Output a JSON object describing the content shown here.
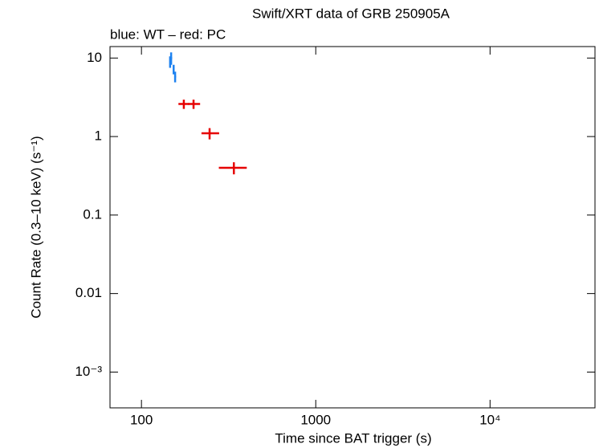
{
  "chart_data": {
    "type": "errorbar",
    "title": "Swift/XRT data of GRB 250905A",
    "subtitle": "blue: WT – red: PC",
    "xlabel": "Time since BAT trigger (s)",
    "ylabel": "Count Rate (0.3–10 keV) (s⁻¹)",
    "xscale": "log",
    "yscale": "log",
    "xlim": [
      66,
      40000
    ],
    "ylim": [
      0.00035,
      14
    ],
    "xticks": [
      100,
      1000,
      {
        "value": 10000,
        "label": "10⁴"
      }
    ],
    "yticks": [
      {
        "value": 0.001,
        "label": "10⁻³"
      },
      0.01,
      0.1,
      1,
      10
    ],
    "series": [
      {
        "color": "#1e82f0",
        "x": [
          146,
          148,
          153,
          156
        ],
        "values": [
          9.0,
          10.0,
          7.2,
          5.8
        ],
        "xerr_minus": [
          1,
          1,
          2,
          1
        ],
        "xerr_plus": [
          1,
          2,
          1,
          2
        ],
        "yerr": [
          1.5,
          1.8,
          1.0,
          0.9
        ]
      },
      {
        "color": "#e60000",
        "x": [
          175,
          199,
          246,
          339
        ],
        "values": [
          2.6,
          2.6,
          1.1,
          0.4
        ],
        "xerr_minus": [
          12,
          14,
          25,
          61
        ],
        "xerr_plus": [
          13,
          18,
          33,
          63
        ],
        "yerr": [
          0.35,
          0.35,
          0.18,
          0.07
        ]
      }
    ]
  }
}
